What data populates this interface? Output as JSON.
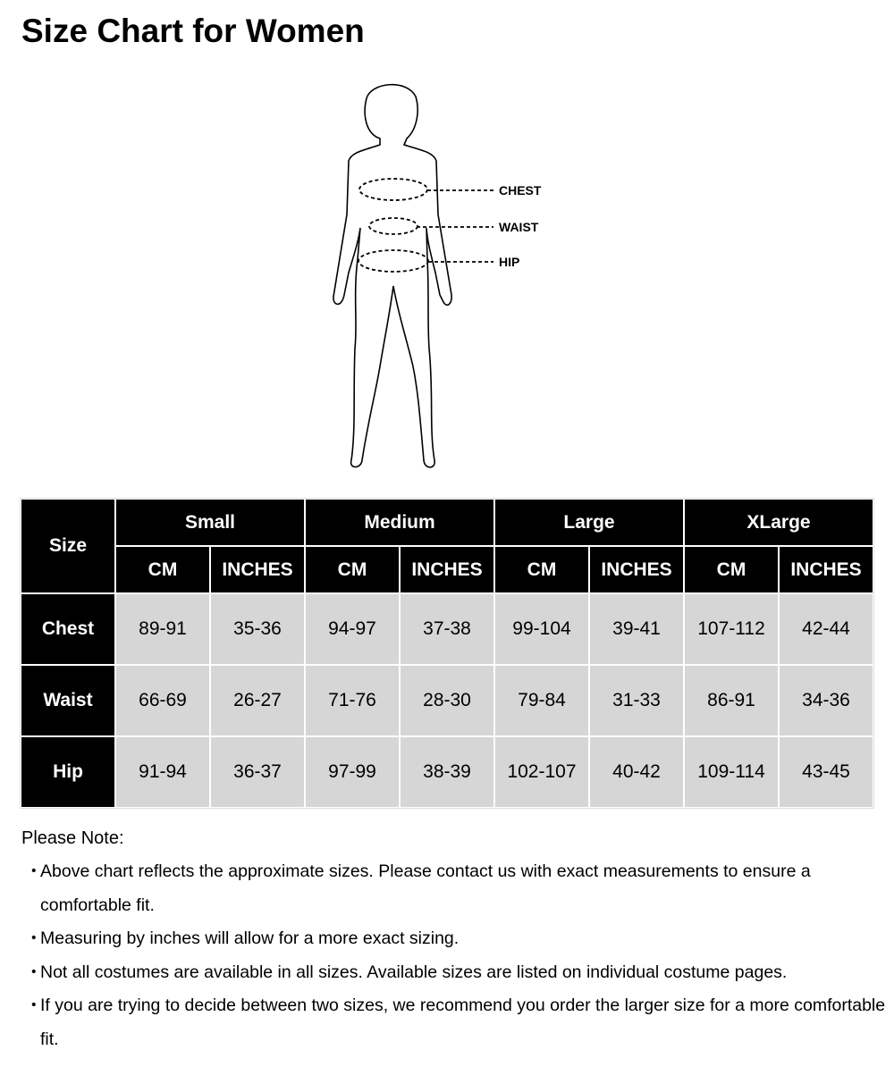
{
  "title": "Size Chart for Women",
  "figure": {
    "labels": {
      "chest": "CHEST",
      "waist": "WAIST",
      "hip": "HIP"
    }
  },
  "table": {
    "corner": "Size",
    "sizes": [
      "Small",
      "Medium",
      "Large",
      "XLarge"
    ],
    "units": [
      "CM",
      "INCHES"
    ],
    "rows": [
      {
        "label": "Chest",
        "values": [
          "89-91",
          "35-36",
          "94-97",
          "37-38",
          "99-104",
          "39-41",
          "107-112",
          "42-44"
        ]
      },
      {
        "label": "Waist",
        "values": [
          "66-69",
          "26-27",
          "71-76",
          "28-30",
          "79-84",
          "31-33",
          "86-91",
          "34-36"
        ]
      },
      {
        "label": "Hip",
        "values": [
          "91-94",
          "36-37",
          "97-99",
          "38-39",
          "102-107",
          "40-42",
          "109-114",
          "43-45"
        ]
      }
    ],
    "colors": {
      "header": "#000000",
      "cell": "#d6d6d6"
    }
  },
  "notes": {
    "title": "Please Note:",
    "bullet": "・",
    "items": [
      "Above chart reflects the approximate sizes. Please contact us with exact measurements to ensure a comfortable fit.",
      "Measuring by inches will allow for a more exact sizing.",
      "Not all costumes are available in all sizes. Available sizes are listed on individual costume pages.",
      "If you are trying to decide between two sizes, we recommend you order the larger size for a more comfortable fit."
    ]
  }
}
